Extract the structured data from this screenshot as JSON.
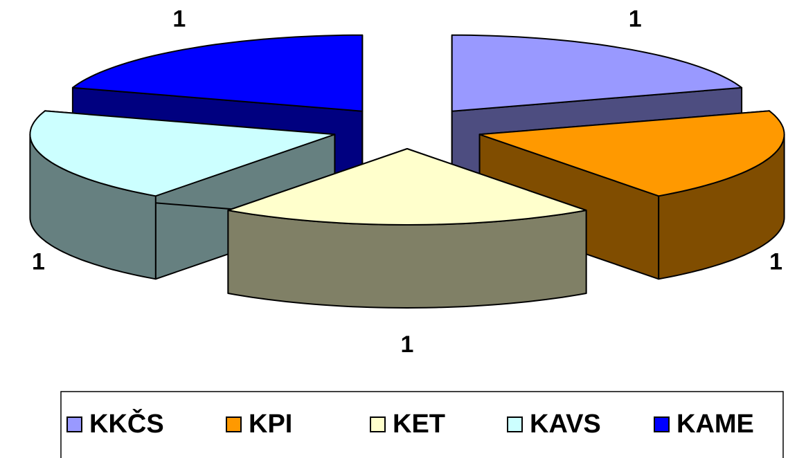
{
  "chart_data": {
    "type": "pie3d",
    "categories": [
      "KKČS",
      "KPI",
      "KET",
      "KAVS",
      "KAME"
    ],
    "values": [
      1,
      1,
      1,
      1,
      1
    ],
    "colors": [
      "#9999ff",
      "#ff9900",
      "#ffffcc",
      "#ccffff",
      "#0000ff"
    ],
    "legend": "bottom"
  }
}
